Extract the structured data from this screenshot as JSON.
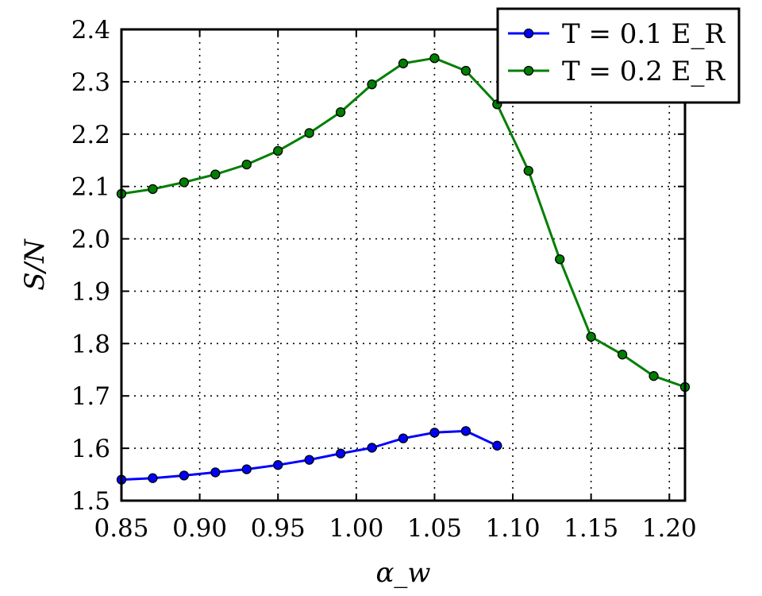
{
  "chart_data": {
    "type": "line",
    "xlabel": "α_w",
    "ylabel": "S/N",
    "xlim": [
      0.85,
      1.21
    ],
    "ylim": [
      1.5,
      2.4
    ],
    "xticks": [
      "0.85",
      "0.90",
      "0.95",
      "1.00",
      "1.05",
      "1.10",
      "1.15",
      "1.20"
    ],
    "yticks": [
      "1.5",
      "1.6",
      "1.7",
      "1.8",
      "1.9",
      "2.0",
      "2.1",
      "2.2",
      "2.3",
      "2.4"
    ],
    "grid": true,
    "legend_position": "top-right",
    "series": [
      {
        "name": "T = 0.1 E_R",
        "color": "#0000ff",
        "x": [
          0.85,
          0.87,
          0.89,
          0.91,
          0.93,
          0.95,
          0.97,
          0.99,
          1.01,
          1.03,
          1.05,
          1.07,
          1.09
        ],
        "y": [
          1.54,
          1.543,
          1.548,
          1.554,
          1.56,
          1.568,
          1.578,
          1.59,
          1.601,
          1.619,
          1.63,
          1.633,
          1.605
        ]
      },
      {
        "name": "T = 0.2 E_R",
        "color": "#007f00",
        "x": [
          0.85,
          0.87,
          0.89,
          0.91,
          0.93,
          0.95,
          0.97,
          0.99,
          1.01,
          1.03,
          1.05,
          1.07,
          1.09,
          1.11,
          1.13,
          1.15,
          1.17,
          1.19,
          1.21
        ],
        "y": [
          2.086,
          2.095,
          2.108,
          2.123,
          2.142,
          2.168,
          2.202,
          2.242,
          2.295,
          2.335,
          2.345,
          2.321,
          2.257,
          2.13,
          1.961,
          1.813,
          1.779,
          1.738,
          1.717
        ]
      }
    ]
  }
}
